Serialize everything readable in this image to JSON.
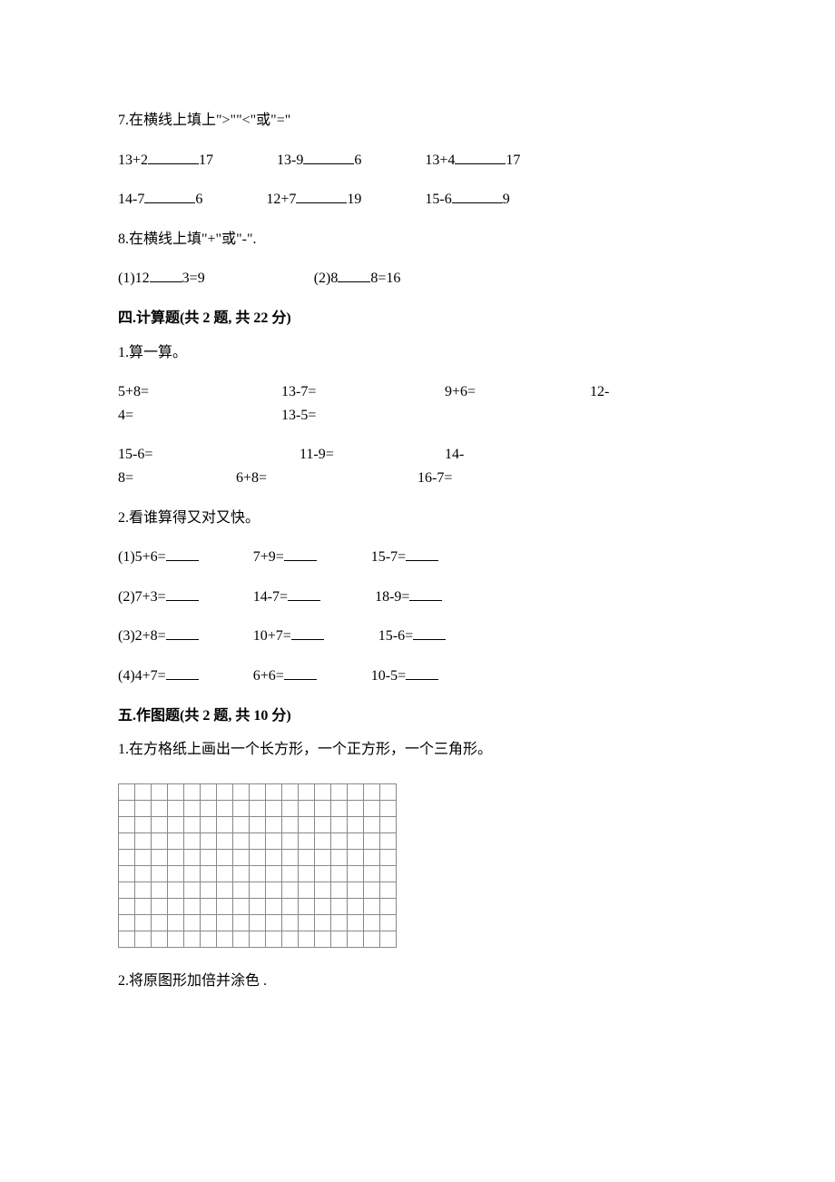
{
  "q7": {
    "title": "7.在横线上填上\">\"\"<\"或\"=\"",
    "rows": [
      [
        {
          "left": "13+2",
          "right": "17"
        },
        {
          "left": "13-9",
          "right": "6"
        },
        {
          "left": "13+4",
          "right": "17"
        }
      ],
      [
        {
          "left": "14-7",
          "right": "6"
        },
        {
          "left": "12+7",
          "right": "19"
        },
        {
          "left": "15-6",
          "right": "9"
        }
      ]
    ]
  },
  "q8": {
    "title": "8.在横线上填\"+\"或\"-\".",
    "items": [
      {
        "label": "(1)",
        "a": "12",
        "b": "3",
        "eq": "=",
        "r": "9"
      },
      {
        "label": "(2)",
        "a": "8",
        "b": "8",
        "eq": "=",
        "r": "16"
      }
    ]
  },
  "section4": {
    "title": "四.计算题(共 2 题, 共 22 分)",
    "q1": {
      "title": "1.算一算。",
      "text1a": "5+8=",
      "text1b": "13-7=",
      "text1c": "9+6=",
      "text1d": "12-",
      "text1e": "4=",
      "text1f": "13-5=",
      "text2a": "15-6=",
      "text2b": "11-9=",
      "text2c": "14-",
      "text2d": "8=",
      "text2e": "6+8=",
      "text2f": "16-7="
    },
    "q2": {
      "title": "2.看谁算得又对又快。",
      "rows": [
        {
          "label": "(1)",
          "a": "5+6=",
          "b": "7+9=",
          "c": "15-7="
        },
        {
          "label": "(2)",
          "a": "7+3=",
          "b": "14-7=",
          "c": "18-9="
        },
        {
          "label": "(3)",
          "a": "2+8=",
          "b": "10+7=",
          "c": "15-6="
        },
        {
          "label": "(4)",
          "a": "4+7=",
          "b": "6+6=",
          "c": "10-5="
        }
      ]
    }
  },
  "section5": {
    "title": "五.作图题(共 2 题, 共 10 分)",
    "q1": "1.在方格纸上画出一个长方形，一个正方形，一个三角形。",
    "q2": "2.将原图形加倍并涂色 .",
    "grid": {
      "cols": 17,
      "rows": 10
    }
  }
}
